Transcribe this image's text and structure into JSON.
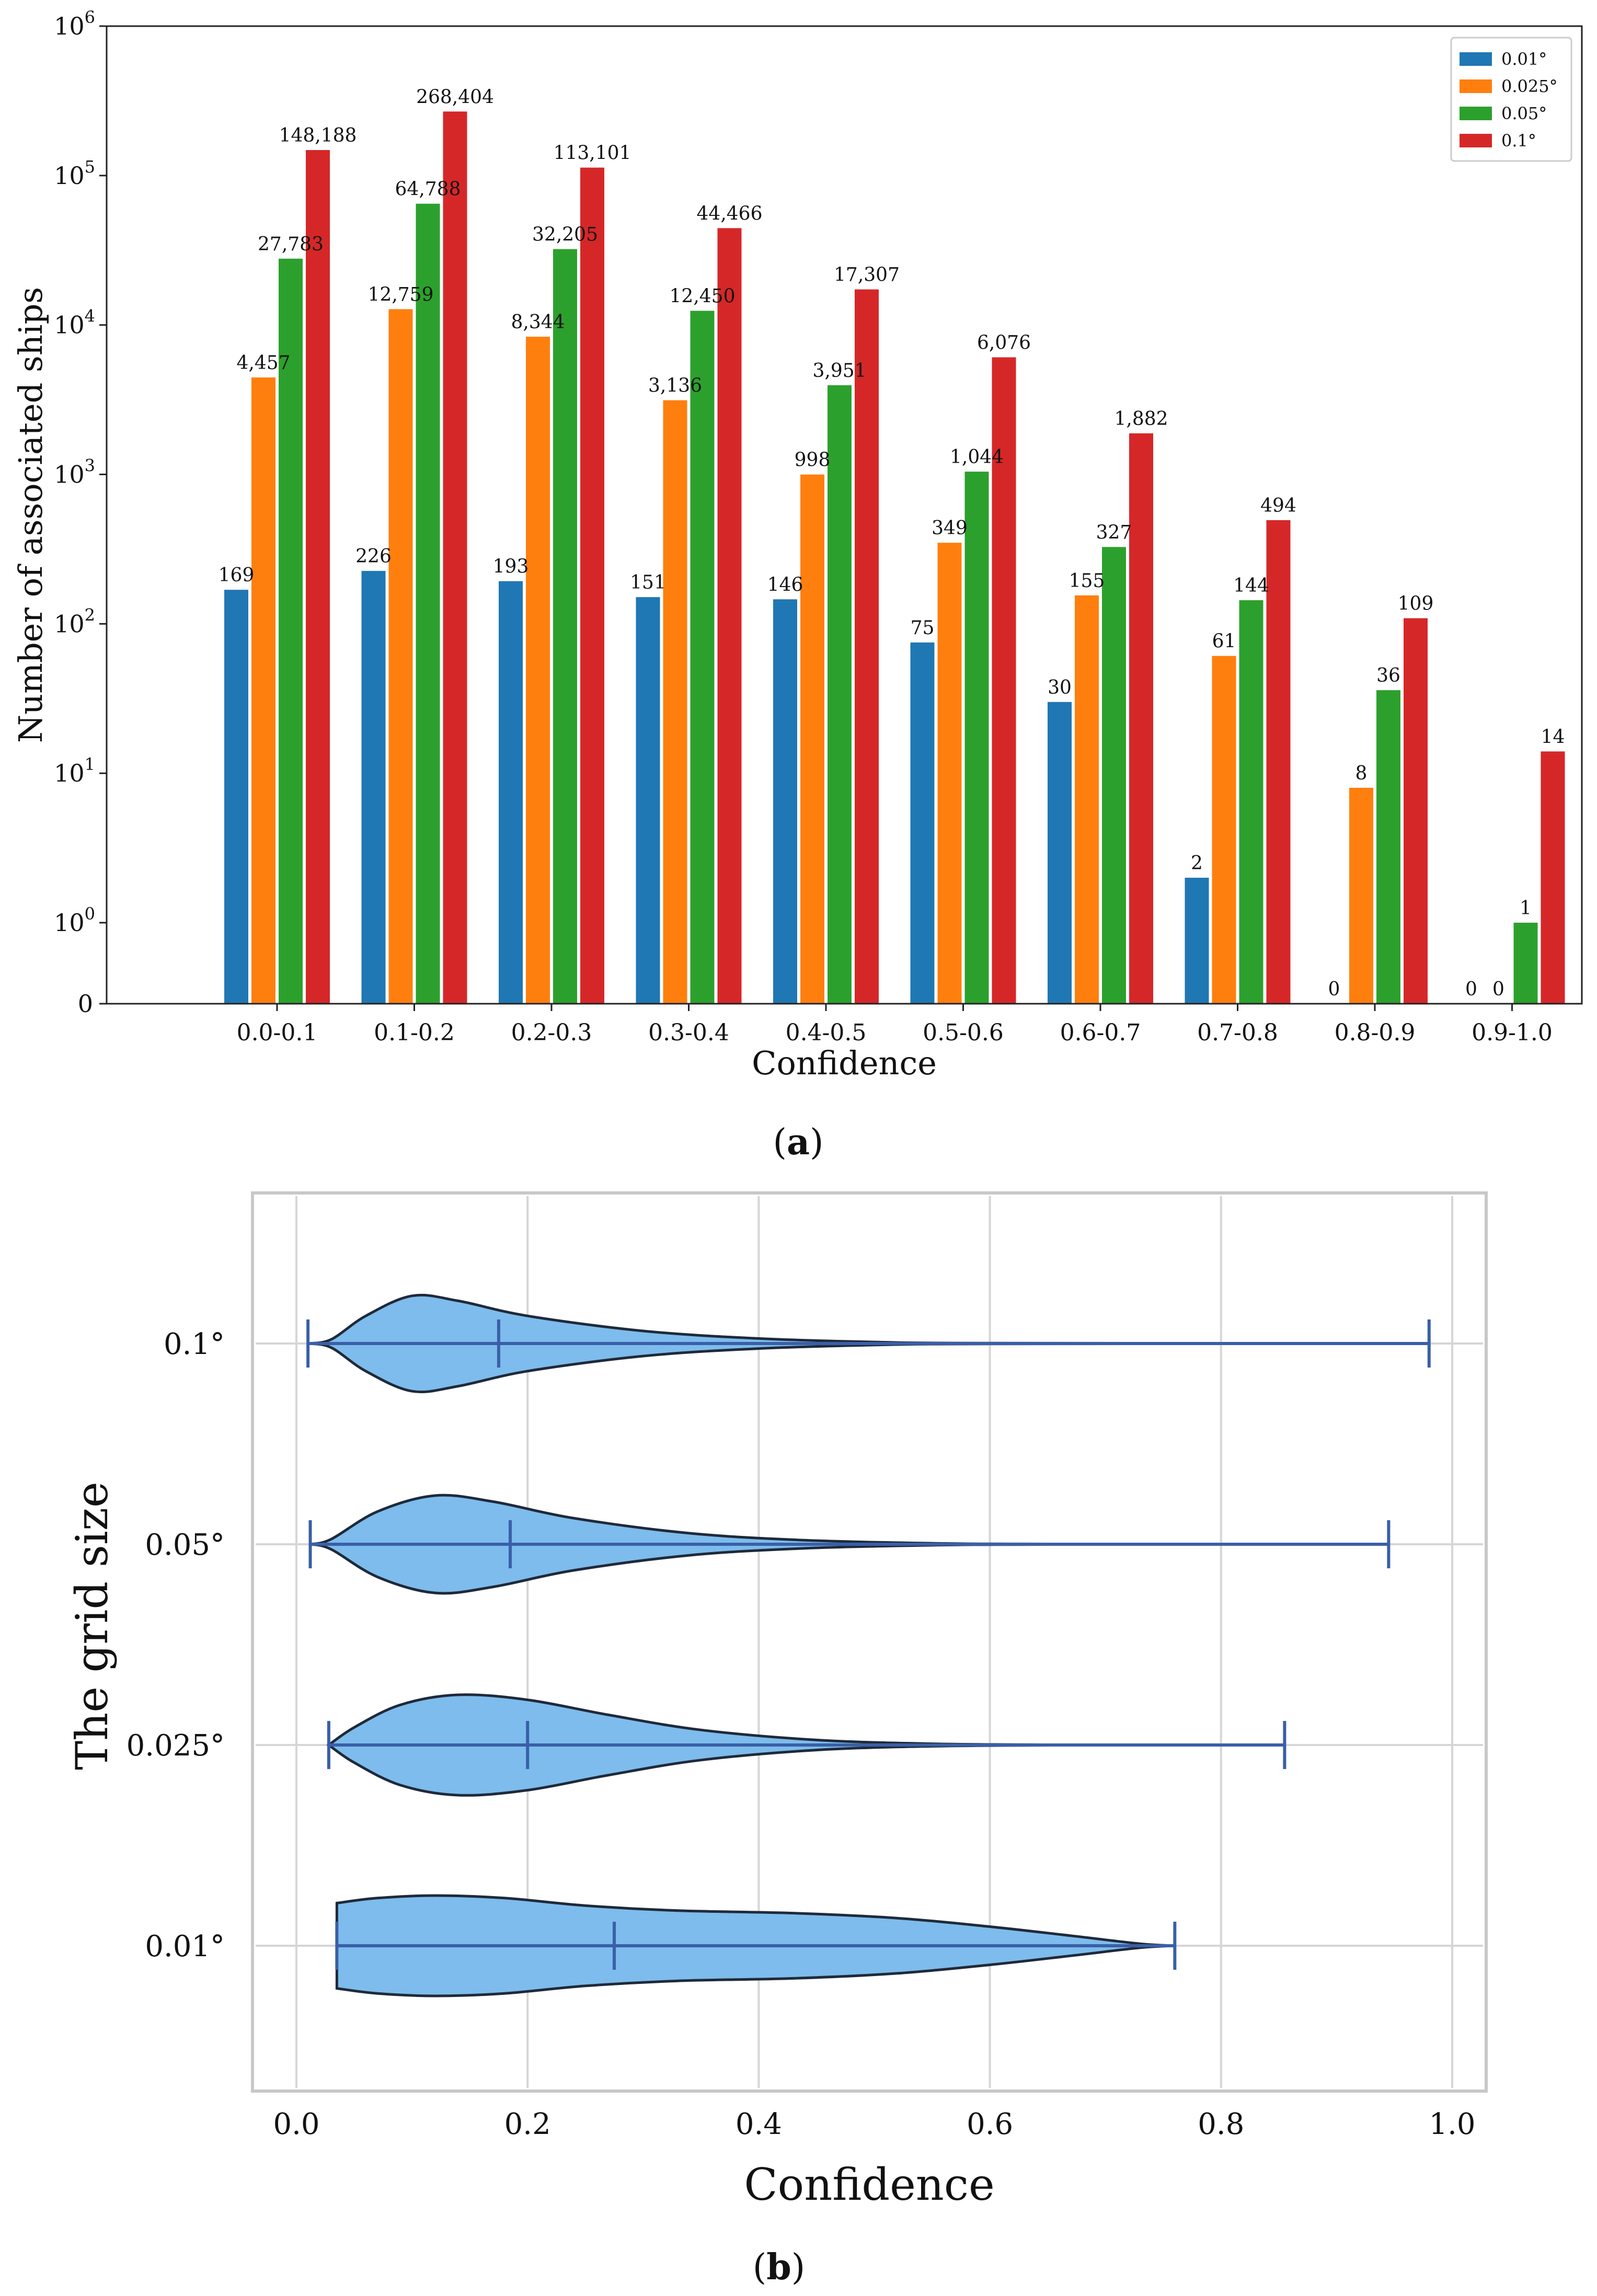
{
  "chart_data": [
    {
      "panel": "(a)",
      "type": "bar",
      "yscale": "symlog",
      "xlabel": "Confidence",
      "ylabel": "Number of associated ships",
      "ylim": [
        0,
        1000000
      ],
      "yticks": [
        {
          "value": 0,
          "label": "0"
        },
        {
          "value": 1,
          "base": "10",
          "exp": "0"
        },
        {
          "value": 10,
          "base": "10",
          "exp": "1"
        },
        {
          "value": 100,
          "base": "10",
          "exp": "2"
        },
        {
          "value": 1000,
          "base": "10",
          "exp": "3"
        },
        {
          "value": 10000,
          "base": "10",
          "exp": "4"
        },
        {
          "value": 100000,
          "base": "10",
          "exp": "5"
        },
        {
          "value": 1000000,
          "base": "10",
          "exp": "6"
        }
      ],
      "categories": [
        "0.0-0.1",
        "0.1-0.2",
        "0.2-0.3",
        "0.3-0.4",
        "0.4-0.5",
        "0.5-0.6",
        "0.6-0.7",
        "0.7-0.8",
        "0.8-0.9",
        "0.9-1.0"
      ],
      "series": [
        {
          "name": "0.01°",
          "color": "#1f77b4",
          "values": [
            169,
            226,
            193,
            151,
            146,
            75,
            30,
            2,
            0,
            0
          ],
          "labels": [
            "169",
            "226",
            "193",
            "151",
            "146",
            "75",
            "30",
            "2",
            "0",
            "0"
          ]
        },
        {
          "name": "0.025°",
          "color": "#ff7f0e",
          "values": [
            4457,
            12759,
            8344,
            3136,
            998,
            349,
            155,
            61,
            8,
            0
          ],
          "labels": [
            "4,457",
            "12,759",
            "8,344",
            "3,136",
            "998",
            "349",
            "155",
            "61",
            "8",
            "0"
          ]
        },
        {
          "name": "0.05°",
          "color": "#2ca02c",
          "values": [
            27783,
            64788,
            32205,
            12450,
            3951,
            1044,
            327,
            144,
            36,
            1
          ],
          "labels": [
            "27,783",
            "64,788",
            "32,205",
            "12,450",
            "3,951",
            "1,044",
            "327",
            "144",
            "36",
            "1"
          ]
        },
        {
          "name": "0.1°",
          "color": "#d62728",
          "values": [
            148188,
            268404,
            113101,
            44466,
            17307,
            6076,
            1882,
            494,
            109,
            14
          ],
          "labels": [
            "148,188",
            "268,404",
            "113,101",
            "44,466",
            "17,307",
            "6,076",
            "1,882",
            "494",
            "109",
            "14"
          ]
        }
      ],
      "legend": "top-right",
      "caption": "a"
    },
    {
      "panel": "(b)",
      "type": "violin",
      "orientation": "horizontal",
      "xlabel": "Confidence",
      "ylabel": "The grid size",
      "xlim": [
        -0.04,
        1.03
      ],
      "xticks": [
        "0.0",
        "0.2",
        "0.4",
        "0.6",
        "0.8",
        "1.0"
      ],
      "xtick_values": [
        0.0,
        0.2,
        0.4,
        0.6,
        0.8,
        1.0
      ],
      "grid": true,
      "fill_color": "#7dbcec",
      "whisker_color": "#3a5fa8",
      "violins": [
        {
          "label": "0.1°",
          "min": 0.01,
          "median": 0.175,
          "max": 0.98,
          "profile": [
            [
              0.01,
              0.0
            ],
            [
              0.03,
              0.08
            ],
            [
              0.06,
              0.55
            ],
            [
              0.1,
              0.95
            ],
            [
              0.14,
              0.85
            ],
            [
              0.2,
              0.55
            ],
            [
              0.3,
              0.25
            ],
            [
              0.4,
              0.1
            ],
            [
              0.5,
              0.03
            ],
            [
              0.6,
              0.008
            ],
            [
              0.98,
              0.0
            ]
          ]
        },
        {
          "label": "0.05°",
          "min": 0.012,
          "median": 0.185,
          "max": 0.945,
          "profile": [
            [
              0.012,
              0.0
            ],
            [
              0.03,
              0.1
            ],
            [
              0.07,
              0.65
            ],
            [
              0.12,
              0.97
            ],
            [
              0.17,
              0.85
            ],
            [
              0.24,
              0.52
            ],
            [
              0.34,
              0.22
            ],
            [
              0.44,
              0.08
            ],
            [
              0.55,
              0.02
            ],
            [
              0.65,
              0.005
            ],
            [
              0.945,
              0.0
            ]
          ]
        },
        {
          "label": "0.025°",
          "min": 0.028,
          "median": 0.2,
          "max": 0.855,
          "profile": [
            [
              0.028,
              0.0
            ],
            [
              0.05,
              0.35
            ],
            [
              0.09,
              0.8
            ],
            [
              0.14,
              1.0
            ],
            [
              0.2,
              0.9
            ],
            [
              0.27,
              0.6
            ],
            [
              0.35,
              0.3
            ],
            [
              0.45,
              0.1
            ],
            [
              0.55,
              0.025
            ],
            [
              0.65,
              0.005
            ],
            [
              0.855,
              0.0
            ]
          ]
        },
        {
          "label": "0.01°",
          "min": 0.035,
          "median": 0.275,
          "max": 0.76,
          "profile": [
            [
              0.035,
              0.85
            ],
            [
              0.07,
              0.95
            ],
            [
              0.12,
              1.0
            ],
            [
              0.18,
              0.95
            ],
            [
              0.25,
              0.8
            ],
            [
              0.33,
              0.7
            ],
            [
              0.43,
              0.65
            ],
            [
              0.52,
              0.55
            ],
            [
              0.6,
              0.38
            ],
            [
              0.67,
              0.2
            ],
            [
              0.73,
              0.04
            ],
            [
              0.76,
              0.0
            ]
          ]
        }
      ],
      "caption": "b"
    }
  ]
}
